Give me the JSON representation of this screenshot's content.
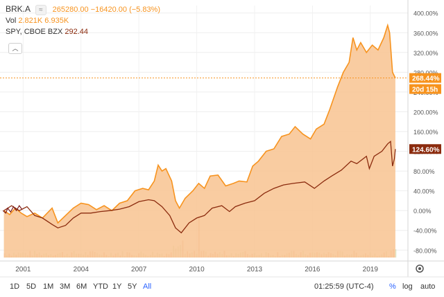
{
  "legend": {
    "symbol": "BRK.A",
    "toggle_icon": "≈",
    "price": "265280.00",
    "change": "−16420.00 (−5.83%)",
    "vol_label": "Vol",
    "vol_value1": "2.821K",
    "vol_value2": "6.935K",
    "compare_symbol": "SPY, CBOE BZX",
    "compare_price": "292.44"
  },
  "collapse_icon": "chevron-up-icon",
  "bottom_bar": {
    "ranges": [
      "1D",
      "5D",
      "1M",
      "3M",
      "6M",
      "YTD",
      "1Y",
      "5Y",
      "All"
    ],
    "active_range": "All",
    "time": "01:25:59 (UTC-4)",
    "percent_label": "%",
    "log_label": "log",
    "auto_label": "auto"
  },
  "colors": {
    "brk": "#f7931e",
    "brk_fill": "#f8c391",
    "spy": "#8b2b0e",
    "badge_text": "#ffffff"
  },
  "chart_data": {
    "type": "area",
    "x_ticks": [
      "2001",
      "2004",
      "2007",
      "2010",
      "2013",
      "2016",
      "2019"
    ],
    "y_ticks": [
      "-80.00%",
      "-40.00%",
      "0.00%",
      "40.00%",
      "80.00%",
      "120.00%",
      "160.00%",
      "200.00%",
      "240.00%",
      "280.00%",
      "320.00%",
      "360.00%",
      "400.00%"
    ],
    "ylim": [
      -95,
      415
    ],
    "grid": true,
    "badges": {
      "brk_last": "268.44%",
      "countdown": "20d 15h",
      "spy_last": "124.60%"
    },
    "series": [
      {
        "symbol": "BRK.A",
        "style": "area",
        "points": [
          [
            2000.0,
            0
          ],
          [
            2000.3,
            -8
          ],
          [
            2000.6,
            5
          ],
          [
            2000.9,
            -5
          ],
          [
            2001.2,
            -12
          ],
          [
            2001.6,
            -5
          ],
          [
            2002.0,
            -15
          ],
          [
            2002.5,
            5
          ],
          [
            2002.8,
            -25
          ],
          [
            2003.2,
            -10
          ],
          [
            2003.6,
            5
          ],
          [
            2004.0,
            15
          ],
          [
            2004.4,
            12
          ],
          [
            2004.8,
            2
          ],
          [
            2005.2,
            10
          ],
          [
            2005.6,
            0
          ],
          [
            2006.0,
            15
          ],
          [
            2006.4,
            20
          ],
          [
            2006.8,
            40
          ],
          [
            2007.2,
            45
          ],
          [
            2007.5,
            42
          ],
          [
            2007.8,
            60
          ],
          [
            2008.0,
            92
          ],
          [
            2008.2,
            80
          ],
          [
            2008.4,
            85
          ],
          [
            2008.7,
            60
          ],
          [
            2008.9,
            20
          ],
          [
            2009.1,
            5
          ],
          [
            2009.4,
            25
          ],
          [
            2009.8,
            40
          ],
          [
            2010.1,
            55
          ],
          [
            2010.4,
            45
          ],
          [
            2010.7,
            70
          ],
          [
            2011.1,
            72
          ],
          [
            2011.5,
            50
          ],
          [
            2011.9,
            55
          ],
          [
            2012.2,
            60
          ],
          [
            2012.6,
            58
          ],
          [
            2012.9,
            90
          ],
          [
            2013.2,
            100
          ],
          [
            2013.6,
            120
          ],
          [
            2014.0,
            125
          ],
          [
            2014.4,
            150
          ],
          [
            2014.8,
            155
          ],
          [
            2015.1,
            170
          ],
          [
            2015.5,
            155
          ],
          [
            2015.9,
            145
          ],
          [
            2016.2,
            165
          ],
          [
            2016.6,
            175
          ],
          [
            2016.9,
            205
          ],
          [
            2017.3,
            250
          ],
          [
            2017.6,
            280
          ],
          [
            2017.9,
            300
          ],
          [
            2018.1,
            350
          ],
          [
            2018.3,
            325
          ],
          [
            2018.5,
            340
          ],
          [
            2018.8,
            320
          ],
          [
            2019.1,
            335
          ],
          [
            2019.4,
            325
          ],
          [
            2019.7,
            350
          ],
          [
            2019.9,
            375
          ],
          [
            2020.0,
            360
          ],
          [
            2020.15,
            280
          ],
          [
            2020.3,
            268.44
          ]
        ]
      },
      {
        "symbol": "SPY",
        "style": "line",
        "points": [
          [
            2000.0,
            0
          ],
          [
            2000.4,
            10
          ],
          [
            2000.8,
            0
          ],
          [
            2001.2,
            8
          ],
          [
            2001.6,
            -10
          ],
          [
            2002.0,
            -15
          ],
          [
            2002.5,
            -28
          ],
          [
            2002.8,
            -35
          ],
          [
            2003.2,
            -30
          ],
          [
            2003.6,
            -15
          ],
          [
            2004.0,
            -5
          ],
          [
            2004.5,
            -5
          ],
          [
            2005.0,
            -2
          ],
          [
            2005.5,
            0
          ],
          [
            2006.0,
            3
          ],
          [
            2006.5,
            8
          ],
          [
            2007.0,
            18
          ],
          [
            2007.5,
            22
          ],
          [
            2007.8,
            20
          ],
          [
            2008.2,
            8
          ],
          [
            2008.6,
            -10
          ],
          [
            2008.9,
            -35
          ],
          [
            2009.2,
            -45
          ],
          [
            2009.6,
            -25
          ],
          [
            2010.0,
            -15
          ],
          [
            2010.4,
            -10
          ],
          [
            2010.8,
            5
          ],
          [
            2011.3,
            10
          ],
          [
            2011.7,
            -2
          ],
          [
            2012.0,
            8
          ],
          [
            2012.5,
            15
          ],
          [
            2013.0,
            20
          ],
          [
            2013.5,
            35
          ],
          [
            2014.0,
            45
          ],
          [
            2014.5,
            52
          ],
          [
            2015.0,
            55
          ],
          [
            2015.6,
            58
          ],
          [
            2016.1,
            45
          ],
          [
            2016.6,
            60
          ],
          [
            2017.0,
            70
          ],
          [
            2017.5,
            82
          ],
          [
            2018.0,
            100
          ],
          [
            2018.3,
            95
          ],
          [
            2018.8,
            110
          ],
          [
            2018.95,
            85
          ],
          [
            2019.2,
            110
          ],
          [
            2019.6,
            120
          ],
          [
            2019.9,
            135
          ],
          [
            2020.05,
            140
          ],
          [
            2020.15,
            90
          ],
          [
            2020.25,
            105
          ],
          [
            2020.3,
            124.6
          ]
        ]
      },
      {
        "symbol": "BRK.A early",
        "style": "line",
        "points": [
          [
            1999.95,
            0
          ],
          [
            2000.1,
            -5
          ],
          [
            2000.2,
            5
          ],
          [
            2000.35,
            -3
          ],
          [
            2000.5,
            8
          ],
          [
            2000.65,
            0
          ],
          [
            2000.8,
            10
          ],
          [
            2000.95,
            2
          ]
        ]
      }
    ]
  }
}
